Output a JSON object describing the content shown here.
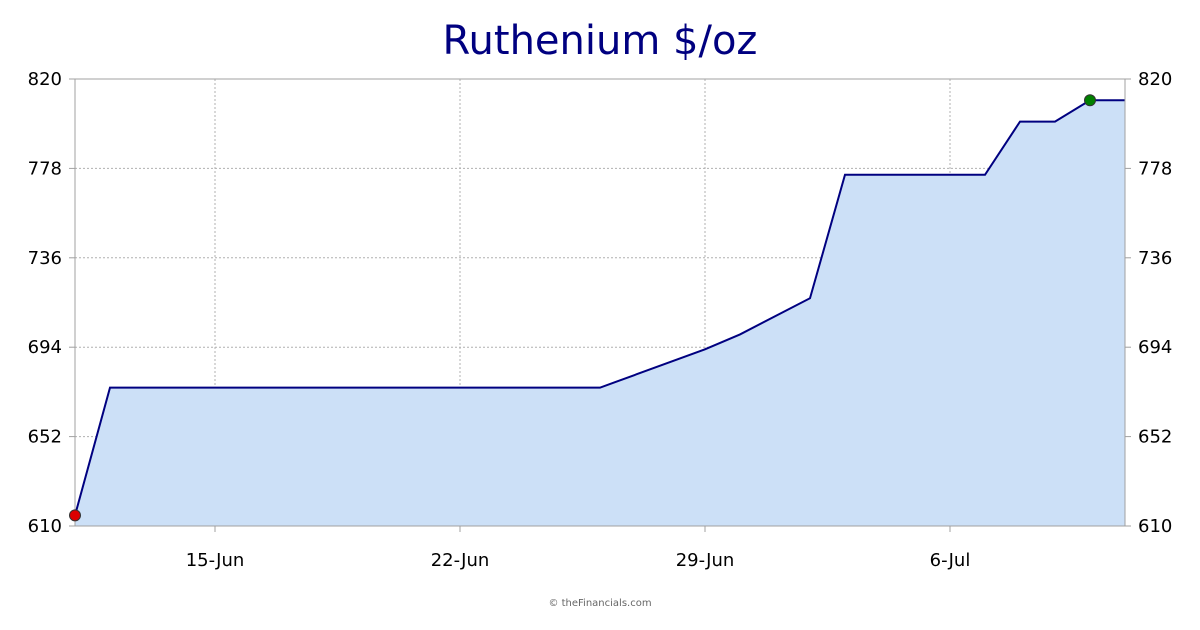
{
  "colors": {
    "title": "#000080",
    "line": "#000080",
    "area": "#cce0f7",
    "grid": "#b0b0b0",
    "axis": "#a0a0a0",
    "start_marker": "#dd0000",
    "end_marker": "#008000"
  },
  "chart_data": {
    "type": "area",
    "title": "Ruthenium $/oz",
    "xlabel": "",
    "ylabel": "",
    "ylim": [
      610,
      820
    ],
    "yticks": [
      "610",
      "652",
      "694",
      "736",
      "778",
      "820"
    ],
    "xticks": [
      {
        "date": "2020-06-15",
        "label": "15-Jun"
      },
      {
        "date": "2020-06-22",
        "label": "22-Jun"
      },
      {
        "date": "2020-06-29",
        "label": "29-Jun"
      },
      {
        "date": "2020-07-06",
        "label": "6-Jul"
      }
    ],
    "xlim": [
      "2020-06-11",
      "2020-07-11"
    ],
    "grid": true,
    "series": [
      {
        "points": [
          {
            "x": "2020-06-11",
            "y": 615
          },
          {
            "x": "2020-06-12",
            "y": 675
          },
          {
            "x": "2020-06-26",
            "y": 675
          },
          {
            "x": "2020-06-29",
            "y": 693
          },
          {
            "x": "2020-06-30",
            "y": 700
          },
          {
            "x": "2020-07-02",
            "y": 717
          },
          {
            "x": "2020-07-03",
            "y": 775
          },
          {
            "x": "2020-07-07",
            "y": 775
          },
          {
            "x": "2020-07-08",
            "y": 800
          },
          {
            "x": "2020-07-09",
            "y": 800
          },
          {
            "x": "2020-07-10",
            "y": 810
          },
          {
            "x": "2020-07-11",
            "y": 810
          }
        ]
      }
    ],
    "markers": [
      {
        "name": "start",
        "x": "2020-06-11",
        "y": 615
      },
      {
        "name": "end",
        "x": "2020-07-10",
        "y": 810
      }
    ]
  },
  "footer": "© theFinancials.com"
}
